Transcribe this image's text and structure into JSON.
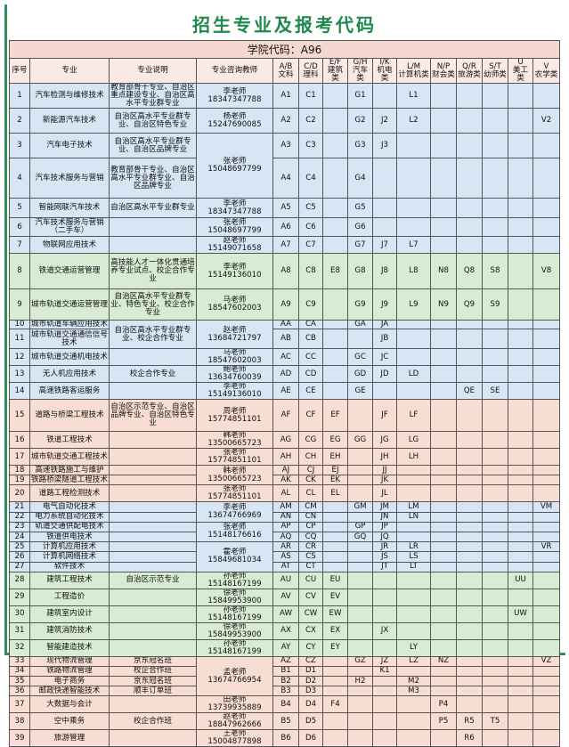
{
  "title": "招生专业及报考代码",
  "table": {
    "college_code": "学院代码：A96",
    "headers": [
      "序号",
      "专业",
      "专业说明",
      "专业咨询教师"
    ],
    "code_headers": [
      {
        "code": "A/B",
        "label": "文科"
      },
      {
        "code": "C/D",
        "label": "理科"
      },
      {
        "code": "E/F",
        "label": "建筑类"
      },
      {
        "code": "G/H",
        "label": "汽车类"
      },
      {
        "code": "I/K",
        "label": "机电类"
      },
      {
        "code": "L/M",
        "label": "计算机类"
      },
      {
        "code": "N/P",
        "label": "财会类"
      },
      {
        "code": "Q/R",
        "label": "旅游类"
      },
      {
        "code": "S/T",
        "label": "幼师类"
      },
      {
        "code": "U",
        "label": "美工类"
      },
      {
        "code": "V",
        "label": "农学类"
      }
    ],
    "rows": [
      {
        "no": 1,
        "major": "汽车检测与维修技术",
        "description": "教育部骨干专业、自治区重点建设专业、自治区高水平专业群专业",
        "teacher": "李老师18347347788",
        "codes": [
          "A1",
          "C1",
          null,
          "G1",
          null,
          "L1",
          null,
          null,
          null,
          null,
          null
        ]
      },
      {
        "no": 2,
        "major": "新能源汽车技术",
        "description": "自治区高水平专业群专业、自治区特色专业",
        "teacher": "杨老师15247690085",
        "codes": [
          "A2",
          "C2",
          null,
          "G2",
          "J2",
          "L2",
          null,
          null,
          null,
          null,
          "V2"
        ]
      },
      {
        "no": 3,
        "major": "汽车电子技术",
        "description": "自治区高水平专业群专业、自治区品牌专业",
        "teacher": "张老师15048697799",
        "codes": [
          "A3",
          "C3",
          null,
          "G3",
          "J3",
          null,
          null,
          null,
          null,
          null,
          null
        ]
      },
      {
        "no": 4,
        "major": "汽车技术服务与营销",
        "description": "教育部骨干专业、自治区高水平专业群专业、自治区品牌专业",
        "teacher": null,
        "codes": [
          "A4",
          "C4",
          null,
          "G4",
          null,
          null,
          null,
          null,
          null,
          null,
          null
        ]
      },
      {
        "no": 5,
        "major": "智能网联汽车技术",
        "description": "自治区高水平专业群专业",
        "teacher": "李老师18347347788",
        "codes": [
          "A5",
          "C5",
          null,
          "G5",
          null,
          null,
          null,
          null,
          null,
          null,
          null
        ]
      },
      {
        "no": 6,
        "major": "汽车技术服务与营销（二手车）",
        "description": null,
        "teacher": "张老师15048697799",
        "codes": [
          "A6",
          "C6",
          null,
          "G6",
          null,
          null,
          null,
          null,
          null,
          null,
          null
        ]
      },
      {
        "no": 7,
        "major": "物联网应用技术",
        "description": null,
        "teacher": "赵老师15149071658",
        "codes": [
          "A7",
          "C7",
          null,
          "G7",
          "J7",
          "L7",
          null,
          null,
          null,
          null,
          null
        ]
      },
      {
        "no": 8,
        "major": "铁道交通运营管理",
        "description": "高技能人才一体化贯通培养专业试点、校企合作专业",
        "teacher": "李老师15149136010",
        "codes": [
          "A8",
          "C8",
          "E8",
          "G8",
          "J8",
          "L8",
          "N8",
          "Q8",
          "S8",
          null,
          "V8"
        ]
      },
      {
        "no": 9,
        "major": "城市轨道交通运营管理",
        "description": "自治区高水平专业群专业、特色专业、校企合作专业",
        "teacher": "马老师18547602003",
        "codes": [
          "A9",
          "C9",
          null,
          "G9",
          "J9",
          "L9",
          "N9",
          "Q9",
          "S9",
          null,
          null
        ]
      },
      {
        "no": 10,
        "major": "城市轨道车辆应用技术",
        "description": "自治区高水平专业群专业、校企合作专业",
        "teacher": "赵老师13684721797",
        "codes": [
          "AA",
          "CA",
          null,
          "GA",
          "JA",
          null,
          null,
          null,
          null,
          null,
          null
        ]
      },
      {
        "no": 11,
        "major": "城市轨道交通通信信号技术",
        "description": null,
        "teacher": null,
        "codes": [
          "AB",
          "CB",
          null,
          null,
          "JB",
          null,
          null,
          null,
          null,
          null,
          null
        ]
      },
      {
        "no": 12,
        "major": "城市轨道交通机电技术",
        "description": null,
        "teacher": "马老师18547602003",
        "codes": [
          "AC",
          "CC",
          null,
          "GC",
          "JC",
          null,
          null,
          null,
          null,
          null,
          null
        ]
      },
      {
        "no": 13,
        "major": "无人机应用技术",
        "description": "校企合作专业",
        "teacher": "鲍老师13634760039",
        "codes": [
          "AD",
          "CD",
          null,
          "GD",
          "JD",
          "LD",
          null,
          null,
          null,
          null,
          null
        ]
      },
      {
        "no": 14,
        "major": "高速铁路客运服务",
        "description": null,
        "teacher": "李老师15149136010",
        "codes": [
          "AE",
          "CE",
          null,
          "GE",
          null,
          null,
          null,
          "QE",
          "SE",
          null,
          null
        ]
      },
      {
        "no": 15,
        "major": "道路与桥梁工程技术",
        "description": "自治区示范专业、自治区品牌专业、自治区特色专业",
        "teacher": "周老师15774851101",
        "codes": [
          "AF",
          "CF",
          "EF",
          null,
          "JF",
          "LF",
          null,
          null,
          null,
          null,
          null
        ]
      },
      {
        "no": 16,
        "major": "铁道工程技术",
        "description": null,
        "teacher": "韩老师13500665723",
        "codes": [
          "AG",
          "CG",
          "EG",
          "GG",
          "JG",
          "LG",
          null,
          null,
          null,
          null,
          null
        ]
      },
      {
        "no": 17,
        "major": "城市轨道交通工程技术",
        "description": null,
        "teacher": "张老师15774851101",
        "codes": [
          "AH",
          "CH",
          "EH",
          null,
          "JH",
          "LH",
          null,
          null,
          null,
          null,
          null
        ]
      },
      {
        "no": 18,
        "major": "高速铁路施工与维护",
        "description": null,
        "teacher": "韩老师13500665723",
        "codes": [
          "AJ",
          "CJ",
          "EJ",
          null,
          "JJ",
          null,
          null,
          null,
          null,
          null,
          null
        ]
      },
      {
        "no": 19,
        "major": "铁路桥梁隧道工程技术",
        "description": null,
        "teacher": null,
        "codes": [
          "AK",
          "CK",
          "EK",
          null,
          "JK",
          null,
          null,
          null,
          null,
          null,
          null
        ]
      },
      {
        "no": 20,
        "major": "道路工程检测技术",
        "description": null,
        "teacher": "张老师15774851101",
        "codes": [
          "AL",
          "CL",
          "EL",
          null,
          "JL",
          null,
          null,
          null,
          null,
          null,
          null
        ]
      },
      {
        "no": 21,
        "major": "电气自动化技术",
        "description": null,
        "teacher": "李老师13674766969",
        "codes": [
          "AM",
          "CM",
          null,
          "GM",
          "JM",
          "LM",
          null,
          null,
          null,
          null,
          "VM"
        ]
      },
      {
        "no": 22,
        "major": "电力系统自动化技术",
        "description": null,
        "teacher": null,
        "codes": [
          "AN",
          "CN",
          null,
          null,
          "JN",
          "LN",
          null,
          null,
          null,
          null,
          null
        ]
      },
      {
        "no": 23,
        "major": "轨道交通供配电技术",
        "description": null,
        "teacher": "张老师15148176616",
        "codes": [
          "AP",
          "CP",
          null,
          "GP",
          "JP",
          null,
          null,
          null,
          null,
          null,
          null
        ]
      },
      {
        "no": 24,
        "major": "铁道供电技术",
        "description": null,
        "teacher": null,
        "codes": [
          "AQ",
          "CQ",
          null,
          "GQ",
          "JQ",
          null,
          null,
          null,
          null,
          null,
          null
        ]
      },
      {
        "no": 25,
        "major": "计算机应用技术",
        "description": null,
        "teacher": "霍老师15849681034",
        "codes": [
          "AR",
          "CR",
          null,
          null,
          "JR",
          "LR",
          null,
          null,
          null,
          null,
          "VR"
        ]
      },
      {
        "no": 26,
        "major": "计算机网络技术",
        "description": null,
        "teacher": null,
        "codes": [
          "AS",
          "CS",
          null,
          null,
          "JS",
          "LS",
          null,
          null,
          null,
          null,
          null
        ]
      },
      {
        "no": 27,
        "major": "软件技术",
        "description": null,
        "teacher": null,
        "codes": [
          "AT",
          "CT",
          null,
          null,
          "JT",
          "LT",
          null,
          null,
          null,
          null,
          null
        ]
      },
      {
        "no": 28,
        "major": "建筑工程技术",
        "description": "自治区示范专业",
        "teacher": "孙老师15148167199",
        "codes": [
          "AU",
          "CU",
          "EU",
          null,
          null,
          null,
          null,
          null,
          null,
          "UU",
          null
        ]
      },
      {
        "no": 29,
        "major": "工程造价",
        "description": null,
        "teacher": "徐老师15849953900",
        "codes": [
          "AV",
          "CV",
          "EV",
          null,
          null,
          null,
          null,
          null,
          null,
          null,
          null
        ]
      },
      {
        "no": 30,
        "major": "建筑室内设计",
        "description": null,
        "teacher": "孙老师15148167199",
        "codes": [
          "AW",
          "CW",
          "EW",
          null,
          null,
          null,
          null,
          null,
          null,
          "UW",
          null
        ]
      },
      {
        "no": 31,
        "major": "建筑消防技术",
        "description": null,
        "teacher": "徐老师15849953900",
        "codes": [
          "AX",
          "CX",
          "EX",
          null,
          "JX",
          null,
          null,
          null,
          null,
          null,
          null
        ]
      },
      {
        "no": 32,
        "major": "智能建造技术",
        "description": null,
        "teacher": "孙老师15148167199",
        "codes": [
          "AY",
          "CY",
          "EY",
          null,
          null,
          "LY",
          null,
          null,
          null,
          null,
          null
        ]
      },
      {
        "no": 33,
        "major": "现代物流管理",
        "description": "京东冠名班",
        "teacher": "孟老师13674766954",
        "codes": [
          "AZ",
          "CZ",
          null,
          "GZ",
          "JZ",
          "LZ",
          "NZ",
          null,
          null,
          null,
          "VZ"
        ]
      },
      {
        "no": 34,
        "major": "铁路物流管理",
        "description": "校企合作班",
        "teacher": null,
        "codes": [
          "B1",
          "D1",
          null,
          null,
          "K1",
          null,
          null,
          null,
          null,
          null,
          null
        ]
      },
      {
        "no": 35,
        "major": "电子商务",
        "description": "京东冠名班",
        "teacher": null,
        "codes": [
          "B2",
          "D2",
          null,
          "H2",
          null,
          "M2",
          null,
          null,
          null,
          null,
          null
        ]
      },
      {
        "no": 36,
        "major": "邮政快递智能技术",
        "description": "顺丰订单班",
        "teacher": null,
        "codes": [
          "B3",
          "D3",
          null,
          null,
          null,
          "M3",
          null,
          null,
          null,
          null,
          null
        ]
      },
      {
        "no": 37,
        "major": "大数据与会计",
        "description": null,
        "teacher": "田老师13739935889",
        "codes": [
          "B4",
          "D4",
          "F4",
          null,
          null,
          null,
          "P4",
          null,
          null,
          null,
          null
        ]
      },
      {
        "no": 38,
        "major": "空中乘务",
        "description": "校企合作班",
        "teacher": "赵老师18847962666",
        "codes": [
          "B5",
          "D5",
          null,
          null,
          null,
          null,
          "P5",
          "R5",
          "T5",
          null,
          null
        ]
      },
      {
        "no": 39,
        "major": "旅游管理",
        "description": null,
        "teacher": "王老师15004877898",
        "codes": [
          "B6",
          "D6",
          null,
          null,
          null,
          null,
          null,
          "R6",
          null,
          null,
          null
        ]
      }
    ]
  }
}
